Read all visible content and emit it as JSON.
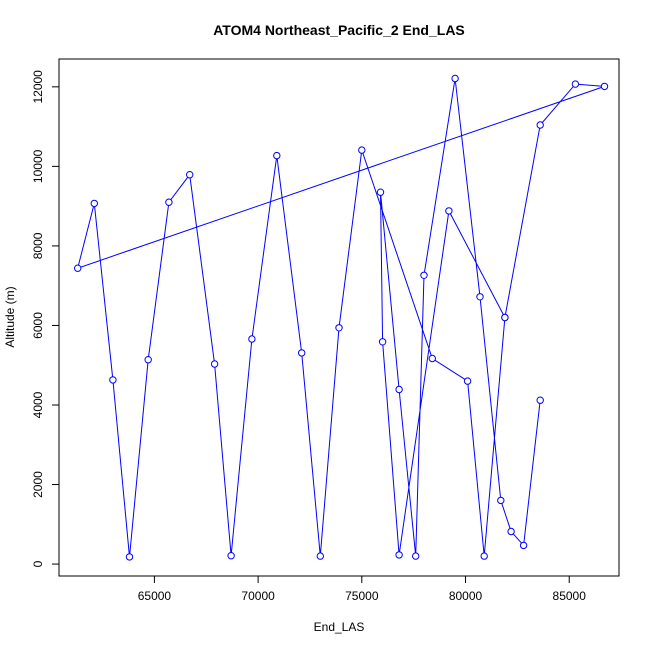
{
  "chart_data": {
    "type": "line",
    "title": "ATOM4 Northeast_Pacific_2 End_LAS",
    "xlabel": "End_LAS",
    "ylabel": "Altitude (m)",
    "xlim": [
      60400,
      87400
    ],
    "ylim": [
      -300,
      12700
    ],
    "x_ticks": [
      65000,
      70000,
      75000,
      80000,
      85000
    ],
    "y_ticks": [
      0,
      2000,
      4000,
      6000,
      8000,
      10000,
      12000
    ],
    "grid": false,
    "series": [
      {
        "color": "#0000ff",
        "marker": "open-circle",
        "points": [
          [
            83600,
            4120
          ],
          [
            82800,
            470
          ],
          [
            82200,
            820
          ],
          [
            81700,
            1600
          ],
          [
            80700,
            6720
          ],
          [
            79500,
            12210
          ],
          [
            78000,
            7260
          ],
          [
            77600,
            200
          ],
          [
            76800,
            4390
          ],
          [
            75900,
            9350
          ],
          [
            76000,
            5590
          ],
          [
            76800,
            230
          ],
          [
            79200,
            8880
          ],
          [
            81900,
            6200
          ],
          [
            80900,
            200
          ],
          [
            80100,
            4600
          ],
          [
            78400,
            5170
          ],
          [
            75000,
            10410
          ],
          [
            73900,
            5940
          ],
          [
            73000,
            200
          ],
          [
            72100,
            5310
          ],
          [
            70900,
            10270
          ],
          [
            69700,
            5660
          ],
          [
            68700,
            210
          ],
          [
            67900,
            5030
          ],
          [
            66700,
            9790
          ],
          [
            65700,
            9100
          ],
          [
            64700,
            5140
          ],
          [
            63800,
            180
          ],
          [
            63000,
            4630
          ],
          [
            62100,
            9070
          ],
          [
            61300,
            7440
          ],
          [
            86700,
            12010
          ],
          [
            85300,
            12070
          ],
          [
            83600,
            11040
          ],
          [
            81900,
            6200
          ]
        ]
      }
    ]
  }
}
